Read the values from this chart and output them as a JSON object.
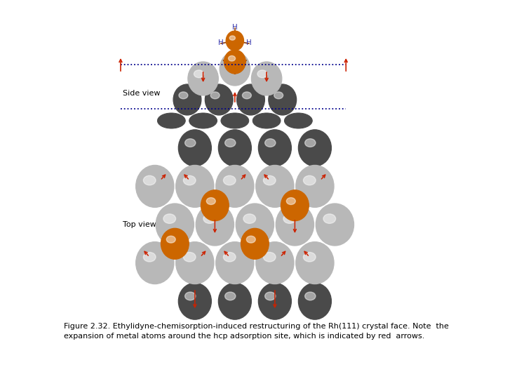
{
  "caption_line1": "Figure 2.32. Ethylidyne-chemisorption-induced restructuring of the Rh(111) crystal face. Note  the",
  "caption_line2": "expansion of metal atoms around the hcp adsorption site, which is indicated by red  arrows.",
  "caption_fontsize": 8.0,
  "bg_color": "#ffffff",
  "side_view_label": "Side view",
  "top_view_label": "Top view",
  "light_gray": "#b8b8b8",
  "dark_gray": "#4a4a4a",
  "orange": "#cc6600",
  "red_arrow": "#cc2200",
  "navy_dot": "#00008b",
  "bond_color": "#8B3A0A",
  "H_color": "#3333aa",
  "edge_color": "#555555"
}
